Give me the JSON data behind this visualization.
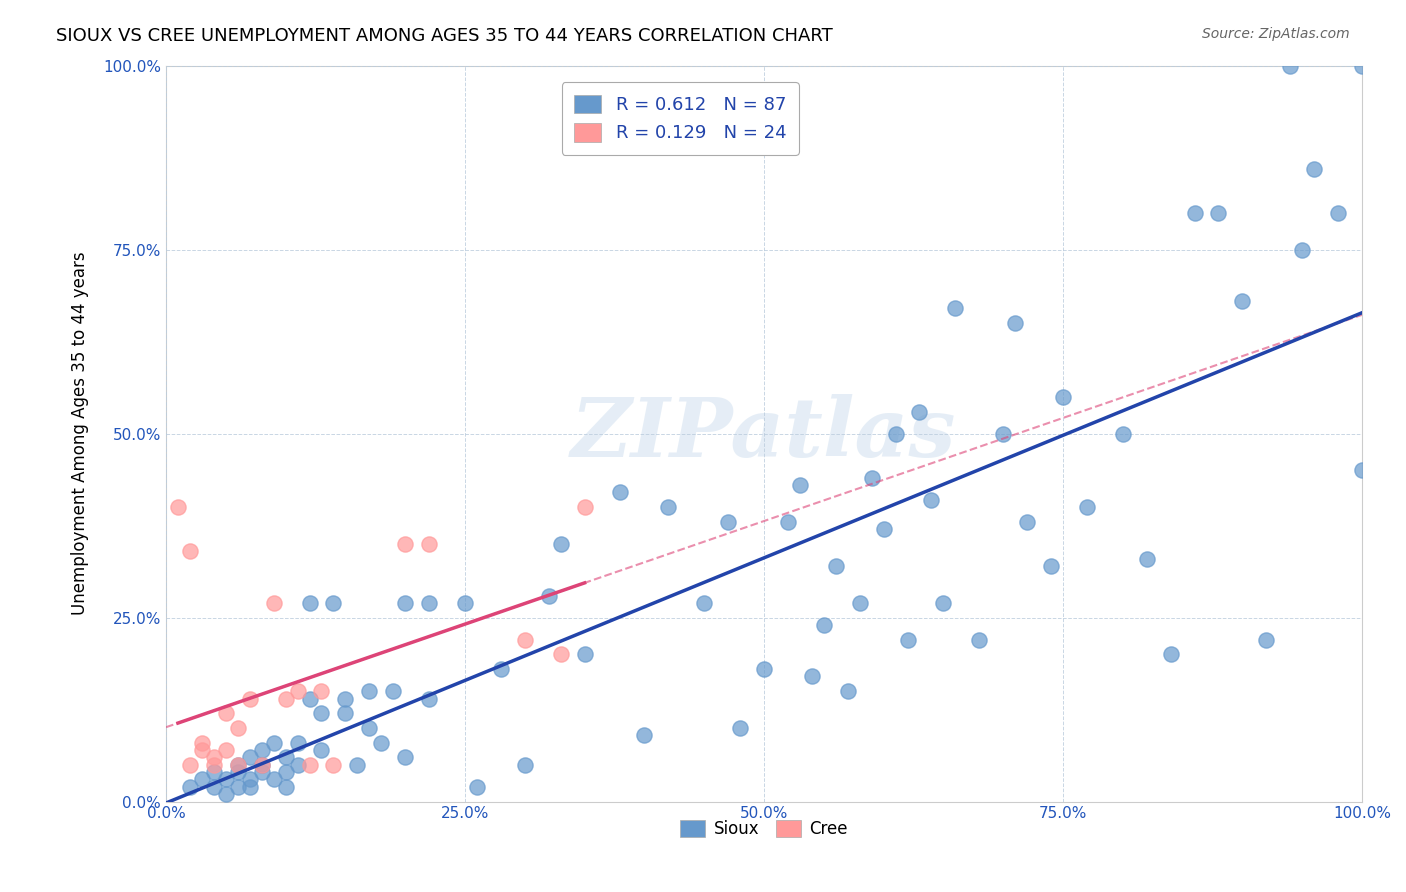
{
  "title": "SIOUX VS CREE UNEMPLOYMENT AMONG AGES 35 TO 44 YEARS CORRELATION CHART",
  "source": "Source: ZipAtlas.com",
  "xlabel": "",
  "ylabel": "Unemployment Among Ages 35 to 44 years",
  "xlim": [
    0.0,
    1.0
  ],
  "ylim": [
    0.0,
    1.0
  ],
  "xticks": [
    0.0,
    0.25,
    0.5,
    0.75,
    1.0
  ],
  "yticks": [
    0.0,
    0.25,
    0.5,
    0.75,
    1.0
  ],
  "xticklabels": [
    "0.0%",
    "25.0%",
    "50.0%",
    "75.0%",
    "100.0%"
  ],
  "yticklabels": [
    "0.0%",
    "25.0%",
    "50.0%",
    "75.0%",
    "100.0%"
  ],
  "sioux_color": "#6699CC",
  "cree_color": "#FF9999",
  "sioux_line_color": "#2244AA",
  "cree_line_color": "#DD4477",
  "cree_dashed_color": "#DD4477",
  "watermark_text": "ZIPatlas",
  "watermark_color": "#CCDDEE",
  "legend_R_color": "#2244AA",
  "legend_N_color": "#2244AA",
  "sioux_R": 0.612,
  "sioux_N": 87,
  "cree_R": 0.129,
  "cree_N": 24,
  "sioux_x": [
    0.02,
    0.03,
    0.04,
    0.04,
    0.05,
    0.05,
    0.06,
    0.06,
    0.06,
    0.07,
    0.07,
    0.07,
    0.08,
    0.08,
    0.08,
    0.09,
    0.09,
    0.1,
    0.1,
    0.1,
    0.11,
    0.11,
    0.12,
    0.12,
    0.13,
    0.13,
    0.14,
    0.15,
    0.15,
    0.16,
    0.17,
    0.17,
    0.18,
    0.19,
    0.2,
    0.2,
    0.22,
    0.22,
    0.25,
    0.26,
    0.28,
    0.3,
    0.32,
    0.33,
    0.35,
    0.38,
    0.4,
    0.42,
    0.45,
    0.47,
    0.48,
    0.5,
    0.52,
    0.53,
    0.54,
    0.55,
    0.56,
    0.57,
    0.58,
    0.59,
    0.6,
    0.61,
    0.62,
    0.63,
    0.64,
    0.65,
    0.66,
    0.68,
    0.7,
    0.71,
    0.72,
    0.74,
    0.75,
    0.77,
    0.8,
    0.82,
    0.84,
    0.86,
    0.88,
    0.9,
    0.92,
    0.94,
    0.95,
    0.96,
    0.98,
    1.0,
    1.0
  ],
  "sioux_y": [
    0.02,
    0.03,
    0.02,
    0.04,
    0.01,
    0.03,
    0.02,
    0.04,
    0.05,
    0.03,
    0.06,
    0.02,
    0.04,
    0.07,
    0.05,
    0.03,
    0.08,
    0.04,
    0.06,
    0.02,
    0.05,
    0.08,
    0.14,
    0.27,
    0.07,
    0.12,
    0.27,
    0.14,
    0.12,
    0.05,
    0.15,
    0.1,
    0.08,
    0.15,
    0.06,
    0.27,
    0.14,
    0.27,
    0.27,
    0.02,
    0.18,
    0.05,
    0.28,
    0.35,
    0.2,
    0.42,
    0.09,
    0.4,
    0.27,
    0.38,
    0.1,
    0.18,
    0.38,
    0.43,
    0.17,
    0.24,
    0.32,
    0.15,
    0.27,
    0.44,
    0.37,
    0.5,
    0.22,
    0.53,
    0.41,
    0.27,
    0.67,
    0.22,
    0.5,
    0.65,
    0.38,
    0.32,
    0.55,
    0.4,
    0.5,
    0.33,
    0.2,
    0.8,
    0.8,
    0.68,
    0.22,
    1.0,
    0.75,
    0.86,
    0.8,
    0.45,
    1.0
  ],
  "cree_x": [
    0.01,
    0.02,
    0.02,
    0.03,
    0.03,
    0.04,
    0.04,
    0.05,
    0.05,
    0.06,
    0.06,
    0.07,
    0.08,
    0.09,
    0.1,
    0.11,
    0.12,
    0.13,
    0.14,
    0.2,
    0.22,
    0.3,
    0.33,
    0.35
  ],
  "cree_y": [
    0.4,
    0.34,
    0.05,
    0.08,
    0.07,
    0.06,
    0.05,
    0.07,
    0.12,
    0.05,
    0.1,
    0.14,
    0.05,
    0.27,
    0.14,
    0.15,
    0.05,
    0.15,
    0.05,
    0.35,
    0.35,
    0.22,
    0.2,
    0.4
  ]
}
